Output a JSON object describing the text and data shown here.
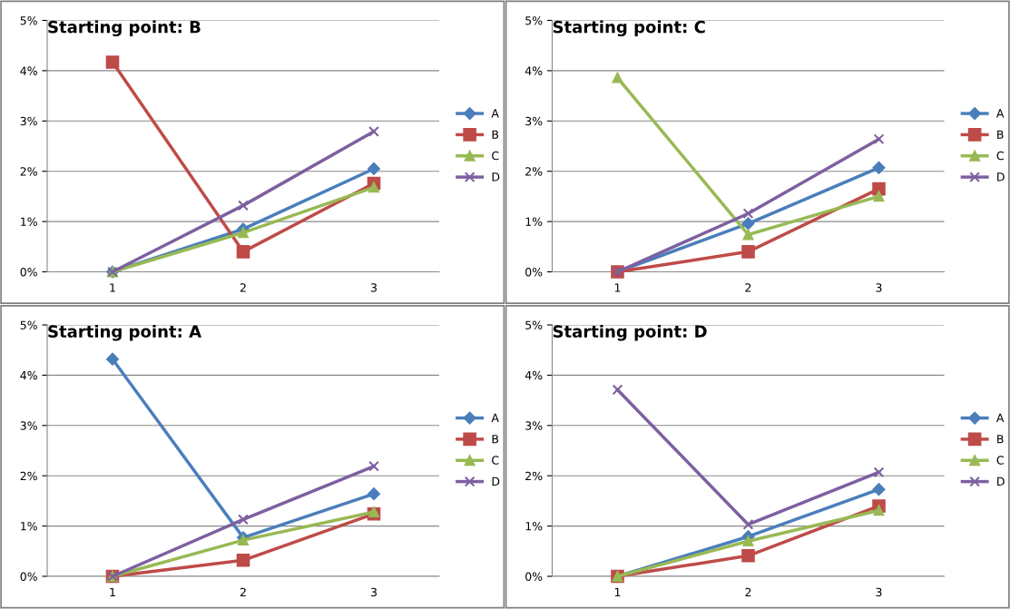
{
  "chart_data": [
    {
      "type": "line",
      "title": "Starting point: B",
      "categories": [
        "1",
        "2",
        "3"
      ],
      "ylim": [
        0,
        5
      ],
      "yticks": [
        {
          "value": 0,
          "label": "0%"
        },
        {
          "value": 1,
          "label": "1%"
        },
        {
          "value": 2,
          "label": "2%"
        },
        {
          "value": 3,
          "label": "3%"
        },
        {
          "value": 4,
          "label": "4%"
        },
        {
          "value": 5,
          "label": "5%"
        }
      ],
      "grid": "y",
      "legend": "right",
      "series": [
        {
          "name": "A",
          "color": "#4a7ebb",
          "marker": "diamond",
          "values": [
            0,
            0.85,
            2.05
          ]
        },
        {
          "name": "B",
          "color": "#be4b48",
          "marker": "square",
          "values": [
            4.17,
            0.4,
            1.76
          ]
        },
        {
          "name": "C",
          "color": "#98b954",
          "marker": "triangle",
          "values": [
            0,
            0.78,
            1.68
          ]
        },
        {
          "name": "D",
          "color": "#7d60a0",
          "marker": "cross",
          "values": [
            0,
            1.32,
            2.79
          ]
        }
      ]
    },
    {
      "type": "line",
      "title": "Starting point: C",
      "categories": [
        "1",
        "2",
        "3"
      ],
      "ylim": [
        0,
        5
      ],
      "yticks": [
        {
          "value": 0,
          "label": "0%"
        },
        {
          "value": 1,
          "label": "1%"
        },
        {
          "value": 2,
          "label": "2%"
        },
        {
          "value": 3,
          "label": "3%"
        },
        {
          "value": 4,
          "label": "4%"
        },
        {
          "value": 5,
          "label": "5%"
        }
      ],
      "grid": "y",
      "legend": "right",
      "series": [
        {
          "name": "A",
          "color": "#4a7ebb",
          "marker": "diamond",
          "values": [
            0,
            0.96,
            2.07
          ]
        },
        {
          "name": "B",
          "color": "#be4b48",
          "marker": "square",
          "values": [
            0,
            0.4,
            1.65
          ]
        },
        {
          "name": "C",
          "color": "#98b954",
          "marker": "triangle",
          "values": [
            3.86,
            0.74,
            1.5
          ]
        },
        {
          "name": "D",
          "color": "#7d60a0",
          "marker": "cross",
          "values": [
            0,
            1.16,
            2.64
          ]
        }
      ]
    },
    {
      "type": "line",
      "title": "Starting point: A",
      "categories": [
        "1",
        "2",
        "3"
      ],
      "ylim": [
        0,
        5
      ],
      "yticks": [
        {
          "value": 0,
          "label": "0%"
        },
        {
          "value": 1,
          "label": "1%"
        },
        {
          "value": 2,
          "label": "2%"
        },
        {
          "value": 3,
          "label": "3%"
        },
        {
          "value": 4,
          "label": "4%"
        },
        {
          "value": 5,
          "label": "5%"
        }
      ],
      "grid": "y",
      "legend": "right",
      "series": [
        {
          "name": "A",
          "color": "#4a7ebb",
          "marker": "diamond",
          "values": [
            4.32,
            0.77,
            1.64
          ]
        },
        {
          "name": "B",
          "color": "#be4b48",
          "marker": "square",
          "values": [
            0,
            0.32,
            1.24
          ]
        },
        {
          "name": "C",
          "color": "#98b954",
          "marker": "triangle",
          "values": [
            0,
            0.72,
            1.28
          ]
        },
        {
          "name": "D",
          "color": "#7d60a0",
          "marker": "cross",
          "values": [
            0,
            1.13,
            2.19
          ]
        }
      ]
    },
    {
      "type": "line",
      "title": "Starting point: D",
      "categories": [
        "1",
        "2",
        "3"
      ],
      "ylim": [
        0,
        5
      ],
      "yticks": [
        {
          "value": 0,
          "label": "0%"
        },
        {
          "value": 1,
          "label": "1%"
        },
        {
          "value": 2,
          "label": "2%"
        },
        {
          "value": 3,
          "label": "3%"
        },
        {
          "value": 4,
          "label": "4%"
        },
        {
          "value": 5,
          "label": "5%"
        }
      ],
      "grid": "y",
      "legend": "right",
      "series": [
        {
          "name": "A",
          "color": "#4a7ebb",
          "marker": "diamond",
          "values": [
            0,
            0.79,
            1.73
          ]
        },
        {
          "name": "B",
          "color": "#be4b48",
          "marker": "square",
          "values": [
            0,
            0.41,
            1.4
          ]
        },
        {
          "name": "C",
          "color": "#98b954",
          "marker": "triangle",
          "values": [
            0,
            0.7,
            1.31
          ]
        },
        {
          "name": "D",
          "color": "#7d60a0",
          "marker": "cross",
          "values": [
            3.71,
            1.03,
            2.07
          ]
        }
      ]
    }
  ]
}
